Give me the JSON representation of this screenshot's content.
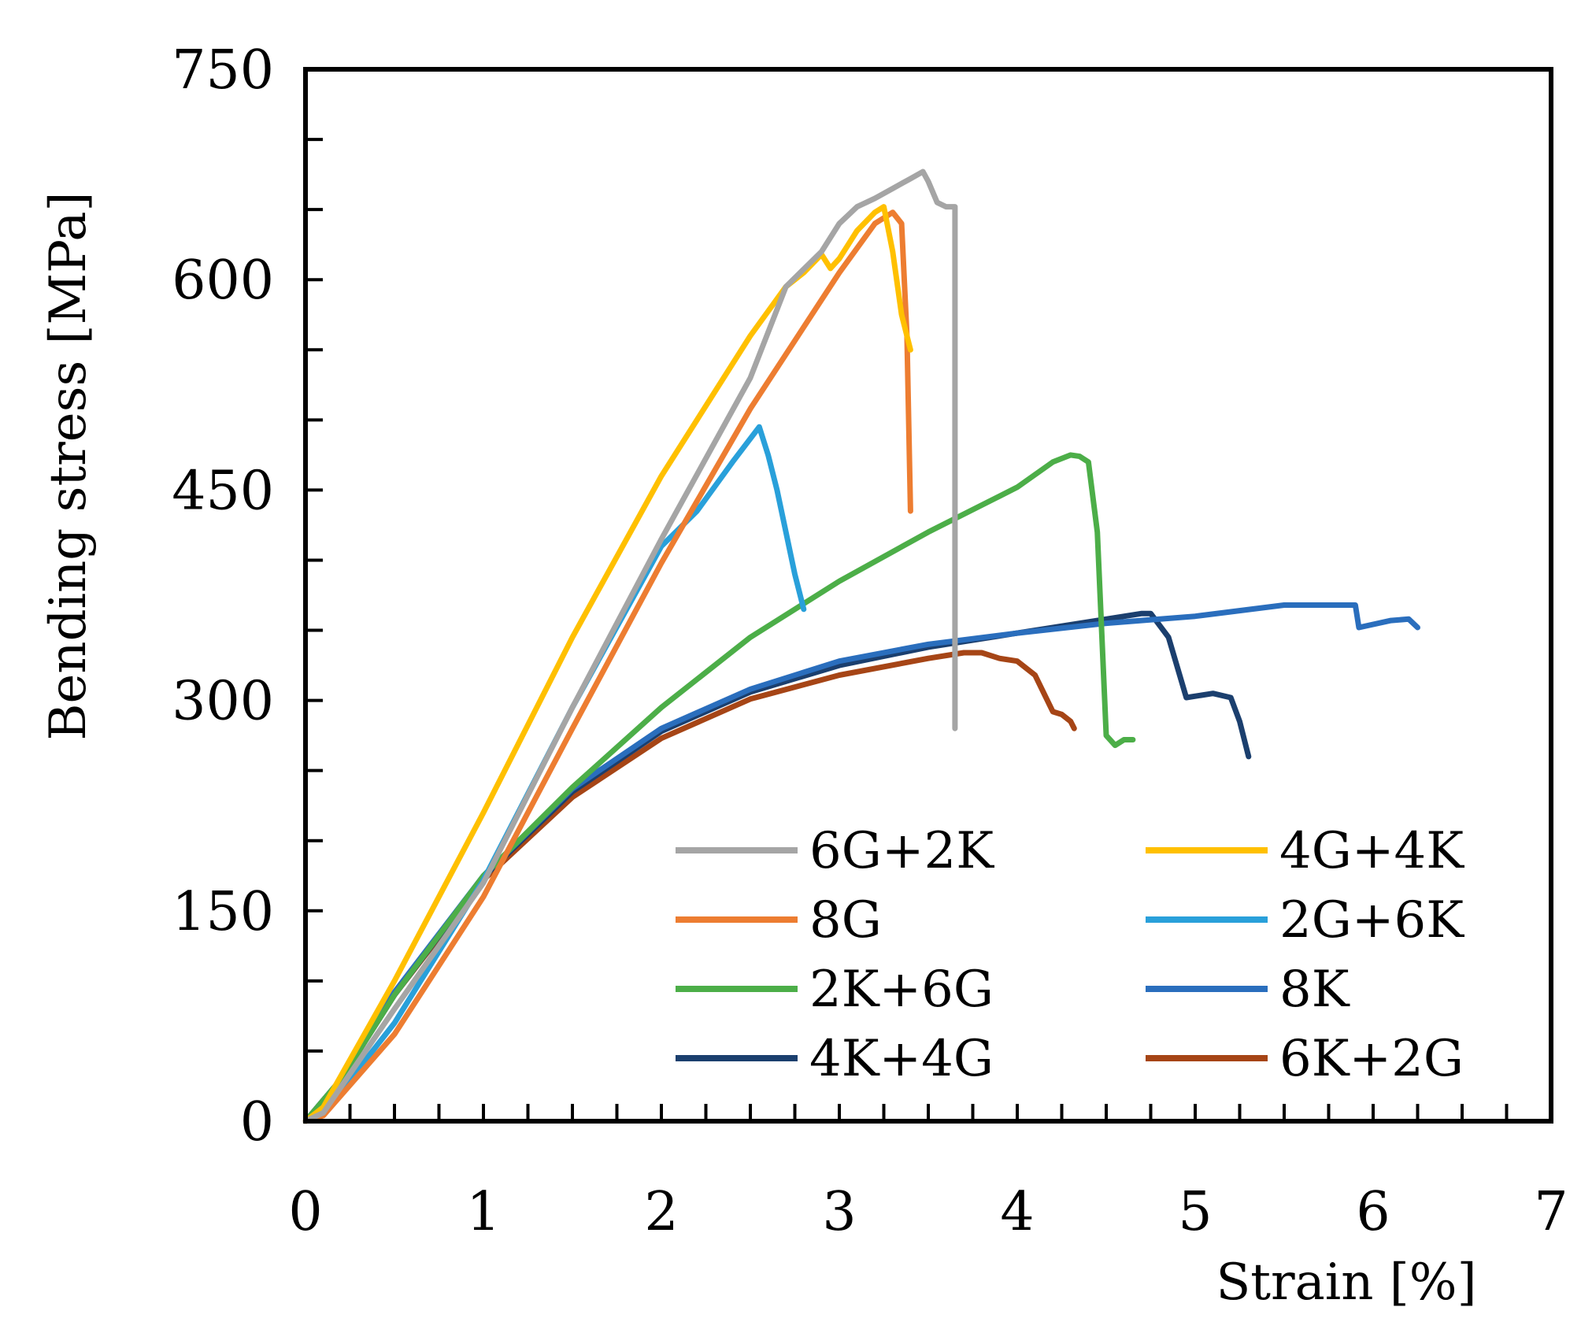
{
  "chart_data": {
    "type": "line",
    "title": "",
    "xlabel": "Strain [%]",
    "ylabel": "Bending stress [MPa]",
    "xlim": [
      0,
      7
    ],
    "ylim": [
      0,
      750
    ],
    "x_major_ticks": [
      0,
      1,
      2,
      3,
      4,
      5,
      6,
      7
    ],
    "x_tick_labels": [
      "0",
      "1",
      "2",
      "3",
      "4",
      "5",
      "6",
      "7"
    ],
    "x_minor_step": 0.25,
    "y_major_ticks": [
      0,
      150,
      300,
      450,
      600,
      750
    ],
    "y_tick_labels": [
      "0",
      "150",
      "300",
      "450",
      "600",
      "750"
    ],
    "y_minor_step": 50,
    "grid": false,
    "legend_position": "bottom-right",
    "series": [
      {
        "name": "6G+2K",
        "color": "#a5a5a5",
        "x": [
          0,
          0.1,
          0.5,
          1.0,
          1.5,
          2.0,
          2.5,
          2.7,
          2.9,
          3.0,
          3.1,
          3.2,
          3.3,
          3.4,
          3.47,
          3.5,
          3.55,
          3.6,
          3.65,
          3.65
        ],
        "y": [
          0,
          6,
          80,
          170,
          295,
          415,
          530,
          595,
          620,
          640,
          652,
          658,
          665,
          672,
          677,
          670,
          655,
          652,
          652,
          280
        ]
      },
      {
        "name": "4G+4K",
        "color": "#ffc000",
        "x": [
          0,
          0.1,
          0.5,
          1.0,
          1.5,
          2.0,
          2.5,
          2.7,
          2.8,
          2.9,
          2.95,
          3.0,
          3.05,
          3.1,
          3.2,
          3.25,
          3.3,
          3.35,
          3.4
        ],
        "y": [
          0,
          10,
          100,
          220,
          345,
          460,
          560,
          595,
          605,
          618,
          608,
          615,
          625,
          635,
          648,
          652,
          620,
          575,
          550
        ]
      },
      {
        "name": "8G",
        "color": "#ed7d31",
        "x": [
          0,
          0.1,
          0.5,
          1.0,
          1.5,
          2.0,
          2.5,
          3.0,
          3.2,
          3.3,
          3.35,
          3.38,
          3.4
        ],
        "y": [
          0,
          4,
          62,
          160,
          280,
          398,
          508,
          605,
          640,
          648,
          640,
          560,
          435
        ]
      },
      {
        "name": "2G+6K",
        "color": "#29a0da",
        "x": [
          0,
          0.1,
          0.5,
          1.0,
          1.5,
          2.0,
          2.2,
          2.4,
          2.55,
          2.6,
          2.65,
          2.7,
          2.75,
          2.8
        ],
        "y": [
          0,
          5,
          70,
          172,
          295,
          410,
          435,
          470,
          495,
          475,
          450,
          420,
          390,
          365
        ]
      },
      {
        "name": "2K+6G",
        "color": "#4cae48",
        "x": [
          0,
          0.2,
          0.5,
          1.0,
          1.5,
          2.0,
          2.5,
          3.0,
          3.5,
          4.0,
          4.2,
          4.3,
          4.35,
          4.4,
          4.45,
          4.5,
          4.55,
          4.6,
          4.65
        ],
        "y": [
          0,
          30,
          90,
          175,
          238,
          295,
          345,
          385,
          420,
          452,
          470,
          475,
          474,
          470,
          420,
          275,
          268,
          272,
          272
        ]
      },
      {
        "name": "8K",
        "color": "#2a6ebd",
        "x": [
          0,
          0.2,
          0.5,
          1.0,
          1.5,
          2.0,
          2.5,
          3.0,
          3.5,
          4.0,
          4.5,
          5.0,
          5.5,
          5.9,
          5.92,
          6.1,
          6.2,
          6.25
        ],
        "y": [
          0,
          30,
          92,
          175,
          237,
          280,
          308,
          328,
          340,
          348,
          355,
          360,
          368,
          368,
          352,
          357,
          358,
          352
        ]
      },
      {
        "name": "4K+4G",
        "color": "#1b3f6e",
        "x": [
          0,
          0.2,
          0.5,
          1.0,
          1.5,
          2.0,
          2.5,
          3.0,
          3.5,
          4.0,
          4.5,
          4.7,
          4.75,
          4.85,
          4.95,
          5.1,
          5.2,
          5.25,
          5.3
        ],
        "y": [
          0,
          30,
          90,
          174,
          235,
          278,
          306,
          325,
          338,
          348,
          358,
          362,
          362,
          345,
          302,
          305,
          302,
          285,
          260
        ]
      },
      {
        "name": "6K+2G",
        "color": "#a64516",
        "x": [
          0,
          0.2,
          0.5,
          1.0,
          1.5,
          2.0,
          2.5,
          3.0,
          3.5,
          3.7,
          3.8,
          3.9,
          4.0,
          4.1,
          4.15,
          4.2,
          4.25,
          4.3,
          4.32
        ],
        "y": [
          0,
          30,
          90,
          172,
          231,
          273,
          301,
          318,
          330,
          334,
          334,
          330,
          328,
          318,
          305,
          292,
          290,
          285,
          280
        ]
      }
    ]
  }
}
